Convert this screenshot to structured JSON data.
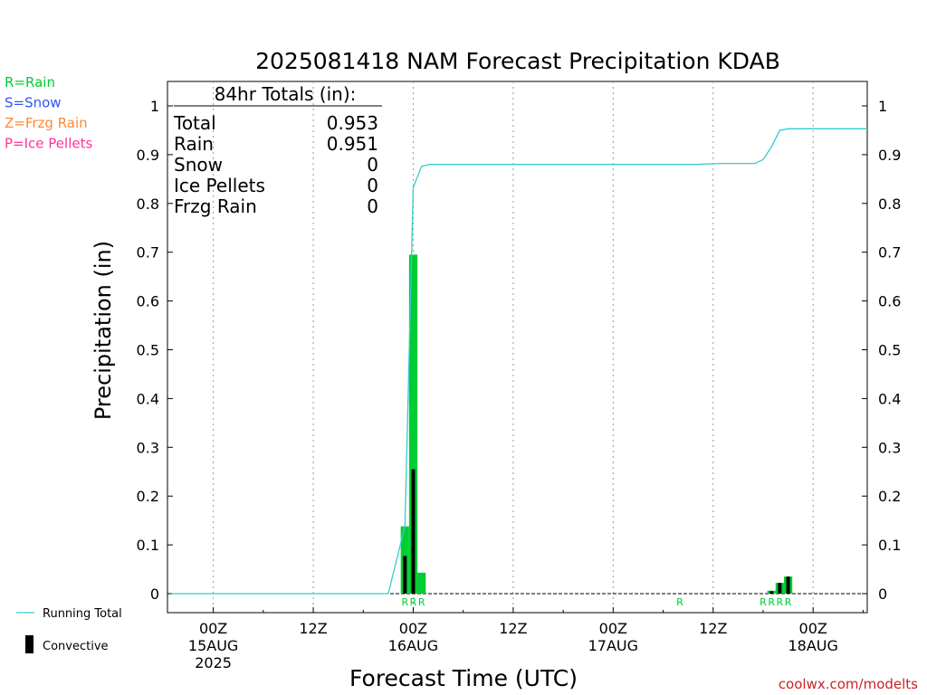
{
  "chart_data": {
    "type": "bar",
    "title": "2025081418 NAM Forecast Precipitation KDAB",
    "ylabel": "Precipitation (in)",
    "xlabel": "Forecast Time (UTC)",
    "ylim": [
      0,
      1.05
    ],
    "xlim_hours": [
      -5.5,
      78.5
    ],
    "yticks": [
      "0",
      "0.1",
      "0.2",
      "0.3",
      "0.4",
      "0.5",
      "0.6",
      "0.7",
      "0.8",
      "0.9",
      "1"
    ],
    "xticks": [
      {
        "h": 0,
        "label": "00Z",
        "date": "15AUG",
        "year": "2025"
      },
      {
        "h": 12,
        "label": "12Z",
        "date": "",
        "year": ""
      },
      {
        "h": 24,
        "label": "00Z",
        "date": "16AUG",
        "year": ""
      },
      {
        "h": 36,
        "label": "12Z",
        "date": "",
        "year": ""
      },
      {
        "h": 48,
        "label": "00Z",
        "date": "17AUG",
        "year": ""
      },
      {
        "h": 60,
        "label": "12Z",
        "date": "",
        "year": ""
      },
      {
        "h": 72,
        "label": "00Z",
        "date": "18AUG",
        "year": ""
      }
    ],
    "grid": "vertical dotted",
    "series": [
      {
        "name": "Rain",
        "color": "#00cc33",
        "points": [
          [
            23,
            0.138
          ],
          [
            24,
            0.695
          ],
          [
            25,
            0.043
          ],
          [
            67,
            0.006
          ],
          [
            68,
            0.022
          ],
          [
            69,
            0.035
          ]
        ]
      },
      {
        "name": "Convective",
        "color": "#000000",
        "points": [
          [
            23,
            0.077
          ],
          [
            24,
            0.255
          ],
          [
            67,
            0.005
          ],
          [
            68,
            0.022
          ],
          [
            69,
            0.035
          ]
        ]
      },
      {
        "name": "Running Total",
        "color": "#33cccc",
        "points": [
          [
            -5,
            0
          ],
          [
            21,
            0
          ],
          [
            23,
            0.138
          ],
          [
            24,
            0.833
          ],
          [
            25,
            0.876
          ],
          [
            26,
            0.88
          ],
          [
            58,
            0.88
          ],
          [
            61,
            0.882
          ],
          [
            65,
            0.882
          ],
          [
            66,
            0.89
          ],
          [
            67,
            0.916
          ],
          [
            68,
            0.95
          ],
          [
            69,
            0.953
          ],
          [
            78.5,
            0.953
          ]
        ]
      }
    ],
    "ptype_markers": [
      {
        "h": 23,
        "label": "R"
      },
      {
        "h": 24,
        "label": "R"
      },
      {
        "h": 25,
        "label": "R"
      },
      {
        "h": 56,
        "label": "R"
      },
      {
        "h": 66,
        "label": "R"
      },
      {
        "h": 67,
        "label": "R"
      },
      {
        "h": 68,
        "label": "R"
      },
      {
        "h": 69,
        "label": "R"
      }
    ]
  },
  "totals": {
    "heading": "84hr Totals (in):",
    "rows": [
      {
        "label": "Total",
        "value": "0.953"
      },
      {
        "label": "Rain",
        "value": "0.951"
      },
      {
        "label": "Snow",
        "value": "0"
      },
      {
        "label": "Ice Pellets",
        "value": "0"
      },
      {
        "label": "Frzg Rain",
        "value": "0"
      }
    ]
  },
  "ptype_legend": [
    {
      "text": "R=Rain",
      "color": "#00cc33"
    },
    {
      "text": "S=Snow",
      "color": "#3355ee"
    },
    {
      "text": "Z=Frzg Rain",
      "color": "#ff8833"
    },
    {
      "text": "P=Ice Pellets",
      "color": "#ff3399"
    }
  ],
  "bottom_legend": {
    "running_total": "Running Total",
    "convective": "Convective"
  },
  "credit": "coolwx.com/modelts",
  "colors": {
    "rain": "#00cc33",
    "convective": "#000000",
    "running_total": "#33cccc",
    "credit": "#cc2222"
  }
}
